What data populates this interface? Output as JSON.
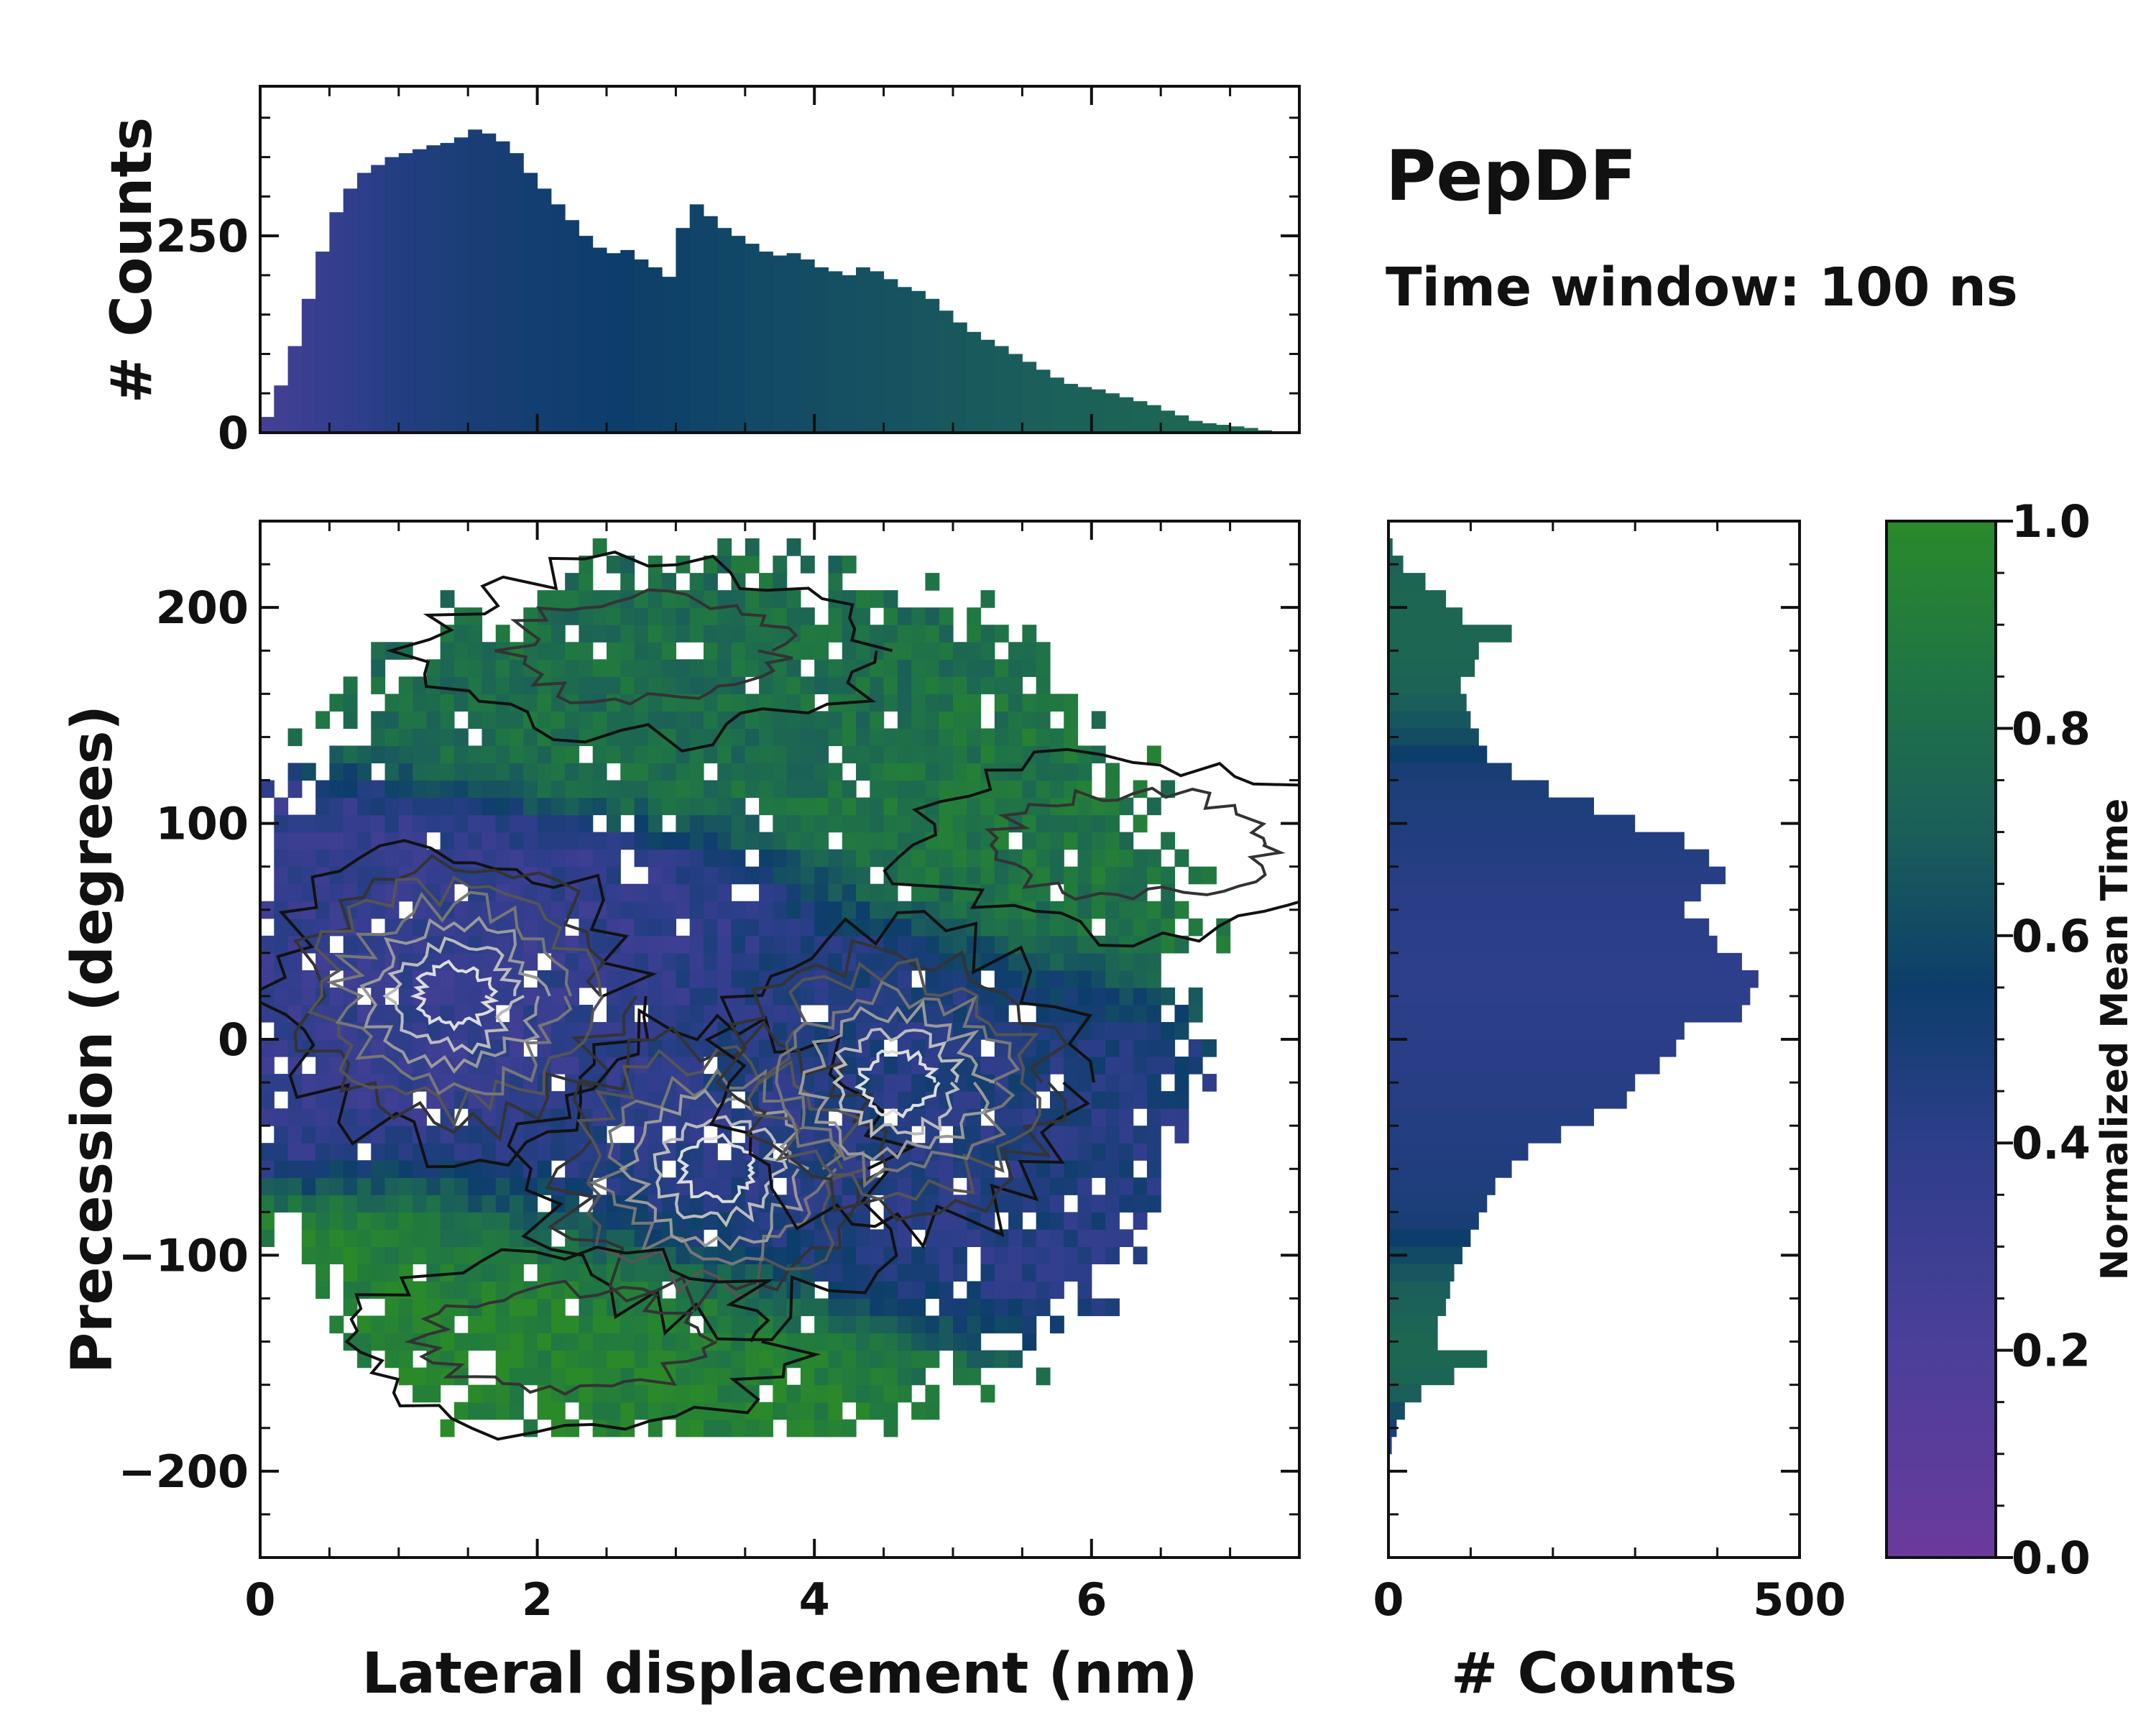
{
  "chart_data": {
    "type": "heatmap",
    "title": "PepDF",
    "subtitle": "Time window: 100 ns",
    "main": {
      "xlabel": "Lateral displacement (nm)",
      "ylabel": "Precession (degrees)",
      "xlim": [
        0,
        7.5
      ],
      "ylim": [
        -240,
        240
      ],
      "xticks": [
        0,
        2,
        4,
        6
      ],
      "yticks": [
        -200,
        -100,
        0,
        100,
        200
      ],
      "ytick_labels": [
        "−200",
        "−100",
        "0",
        "100",
        "200"
      ],
      "bin_width_x": 0.1,
      "bin_width_y": 8,
      "density_clusters": [
        {
          "name": "left-cluster",
          "x": 1.4,
          "y": 20,
          "mean_time": 0.35
        },
        {
          "name": "center-cluster",
          "x": 3.3,
          "y": -60,
          "mean_time": 0.4
        },
        {
          "name": "right-cluster",
          "x": 4.6,
          "y": -20,
          "mean_time": 0.45
        },
        {
          "name": "top-band",
          "x": 2.8,
          "y": 180,
          "mean_time": 0.8
        },
        {
          "name": "bottom-band",
          "x": 2.2,
          "y": -140,
          "mean_time": 0.95
        },
        {
          "name": "upper-right-lobe",
          "x": 6.3,
          "y": 90,
          "mean_time": 0.85
        }
      ]
    },
    "top_hist": {
      "ylabel": "# Counts",
      "ylim": [
        0,
        440
      ],
      "yticks": [
        0,
        250
      ],
      "x": [
        0.05,
        0.15,
        0.25,
        0.35,
        0.45,
        0.55,
        0.65,
        0.75,
        0.85,
        0.95,
        1.05,
        1.15,
        1.25,
        1.35,
        1.45,
        1.55,
        1.65,
        1.75,
        1.85,
        1.95,
        2.05,
        2.15,
        2.25,
        2.35,
        2.45,
        2.55,
        2.65,
        2.75,
        2.85,
        2.95,
        3.05,
        3.15,
        3.25,
        3.35,
        3.45,
        3.55,
        3.65,
        3.75,
        3.85,
        3.95,
        4.05,
        4.15,
        4.25,
        4.35,
        4.45,
        4.55,
        4.65,
        4.75,
        4.85,
        4.95,
        5.05,
        5.15,
        5.25,
        5.35,
        5.45,
        5.55,
        5.65,
        5.75,
        5.85,
        5.95,
        6.05,
        6.15,
        6.25,
        6.35,
        6.45,
        6.55,
        6.65,
        6.75,
        6.85,
        6.95,
        7.05,
        7.15,
        7.25
      ],
      "values": [
        20,
        60,
        110,
        170,
        230,
        280,
        310,
        330,
        340,
        350,
        355,
        360,
        365,
        368,
        375,
        385,
        380,
        370,
        355,
        330,
        310,
        290,
        270,
        250,
        235,
        228,
        232,
        220,
        210,
        198,
        260,
        290,
        275,
        260,
        250,
        240,
        230,
        225,
        228,
        220,
        210,
        205,
        200,
        210,
        205,
        195,
        185,
        180,
        170,
        155,
        140,
        128,
        118,
        110,
        100,
        90,
        80,
        70,
        62,
        58,
        55,
        50,
        45,
        40,
        35,
        28,
        22,
        15,
        12,
        10,
        8,
        6,
        3
      ],
      "color_values": [
        0.25,
        0.27,
        0.3,
        0.32,
        0.34,
        0.36,
        0.38,
        0.4,
        0.42,
        0.44,
        0.45,
        0.46,
        0.47,
        0.48,
        0.49,
        0.5,
        0.5,
        0.51,
        0.51,
        0.52,
        0.52,
        0.53,
        0.53,
        0.54,
        0.54,
        0.55,
        0.55,
        0.56,
        0.56,
        0.57,
        0.57,
        0.58,
        0.58,
        0.59,
        0.59,
        0.6,
        0.6,
        0.61,
        0.61,
        0.62,
        0.62,
        0.63,
        0.63,
        0.64,
        0.64,
        0.65,
        0.65,
        0.66,
        0.66,
        0.67,
        0.67,
        0.68,
        0.68,
        0.69,
        0.69,
        0.7,
        0.7,
        0.71,
        0.71,
        0.72,
        0.72,
        0.73,
        0.73,
        0.74,
        0.74,
        0.75,
        0.75,
        0.76,
        0.76,
        0.77,
        0.77,
        0.78,
        0.78
      ]
    },
    "right_hist": {
      "xlabel": "# Counts",
      "xlim": [
        0,
        500
      ],
      "xticks": [
        0,
        500
      ],
      "y": [
        228,
        220,
        212,
        204,
        196,
        188,
        180,
        172,
        164,
        156,
        148,
        140,
        132,
        124,
        116,
        108,
        100,
        92,
        84,
        76,
        68,
        60,
        52,
        44,
        36,
        28,
        20,
        12,
        4,
        -4,
        -12,
        -20,
        -28,
        -36,
        -44,
        -52,
        -60,
        -68,
        -76,
        -84,
        -92,
        -100,
        -108,
        -116,
        -124,
        -132,
        -140,
        -148,
        -156,
        -164,
        -172,
        -180,
        -188
      ],
      "values": [
        5,
        18,
        45,
        70,
        90,
        150,
        110,
        105,
        88,
        95,
        100,
        110,
        120,
        150,
        195,
        250,
        300,
        360,
        390,
        410,
        380,
        360,
        390,
        400,
        430,
        450,
        440,
        430,
        360,
        350,
        330,
        300,
        290,
        250,
        210,
        170,
        150,
        130,
        120,
        110,
        100,
        90,
        80,
        75,
        70,
        60,
        60,
        120,
        80,
        40,
        20,
        10,
        4
      ],
      "color_values": [
        0.72,
        0.73,
        0.74,
        0.75,
        0.76,
        0.76,
        0.75,
        0.74,
        0.73,
        0.7,
        0.66,
        0.62,
        0.55,
        0.5,
        0.48,
        0.47,
        0.46,
        0.45,
        0.44,
        0.43,
        0.42,
        0.42,
        0.41,
        0.41,
        0.4,
        0.4,
        0.4,
        0.41,
        0.41,
        0.42,
        0.42,
        0.43,
        0.43,
        0.44,
        0.44,
        0.45,
        0.46,
        0.47,
        0.48,
        0.5,
        0.55,
        0.6,
        0.66,
        0.7,
        0.72,
        0.74,
        0.76,
        0.76,
        0.74,
        0.7,
        0.62,
        0.5,
        0.45
      ]
    },
    "colorbar": {
      "label": "Normalized Mean Time",
      "range": [
        0.0,
        1.0
      ],
      "ticks": [
        0.0,
        0.2,
        0.4,
        0.6,
        0.8,
        1.0
      ],
      "tick_labels": [
        "0.0",
        "0.2",
        "0.4",
        "0.6",
        "0.8",
        "1.0"
      ],
      "stops": [
        {
          "v": 0.0,
          "color": "#6a3a9c"
        },
        {
          "v": 0.2,
          "color": "#4b3f9a"
        },
        {
          "v": 0.4,
          "color": "#2d3e8a"
        },
        {
          "v": 0.55,
          "color": "#0d3e6b"
        },
        {
          "v": 0.7,
          "color": "#1b5e5a"
        },
        {
          "v": 0.85,
          "color": "#1f7545"
        },
        {
          "v": 1.0,
          "color": "#2a8a2a"
        }
      ]
    }
  }
}
